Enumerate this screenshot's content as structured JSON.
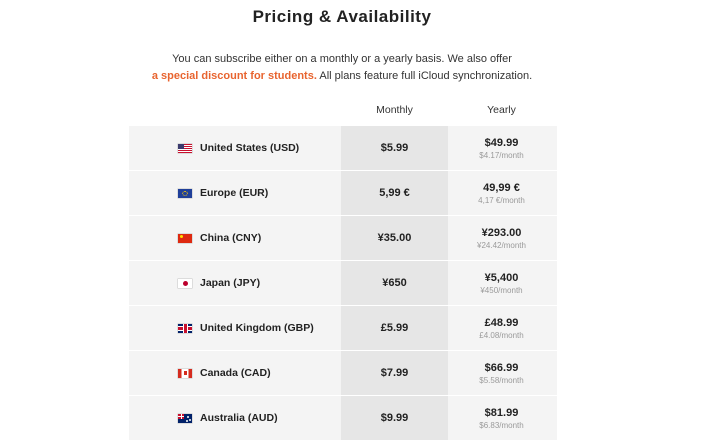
{
  "page": {
    "title": "Pricing & Availability",
    "intro_text_1": "You can subscribe either on a monthly or a yearly basis. We also offer",
    "intro_link": "a special discount for students.",
    "intro_text_2": " All plans feature full iCloud synchronization.",
    "link_color": "#e8642f"
  },
  "columns": {
    "monthly": "Monthly",
    "yearly": "Yearly"
  },
  "rows": [
    {
      "flag_icon": "us-flag-icon",
      "country": "United States (USD)",
      "monthly": "$5.99",
      "yearly": "$49.99",
      "yearly_per_month": "$4.17/month"
    },
    {
      "flag_icon": "eu-flag-icon",
      "country": "Europe (EUR)",
      "monthly": "5,99 €",
      "yearly": "49,99 €",
      "yearly_per_month": "4,17 €/month"
    },
    {
      "flag_icon": "cn-flag-icon",
      "country": "China (CNY)",
      "monthly": "¥35.00",
      "yearly": "¥293.00",
      "yearly_per_month": "¥24.42/month"
    },
    {
      "flag_icon": "jp-flag-icon",
      "country": "Japan (JPY)",
      "monthly": "¥650",
      "yearly": "¥5,400",
      "yearly_per_month": "¥450/month"
    },
    {
      "flag_icon": "gb-flag-icon",
      "country": "United Kingdom (GBP)",
      "monthly": "£5.99",
      "yearly": "£48.99",
      "yearly_per_month": "£4.08/month"
    },
    {
      "flag_icon": "ca-flag-icon",
      "country": "Canada (CAD)",
      "monthly": "$7.99",
      "yearly": "$66.99",
      "yearly_per_month": "$5.58/month"
    },
    {
      "flag_icon": "au-flag-icon",
      "country": "Australia (AUD)",
      "monthly": "$9.99",
      "yearly": "$81.99",
      "yearly_per_month": "$6.83/month"
    }
  ]
}
